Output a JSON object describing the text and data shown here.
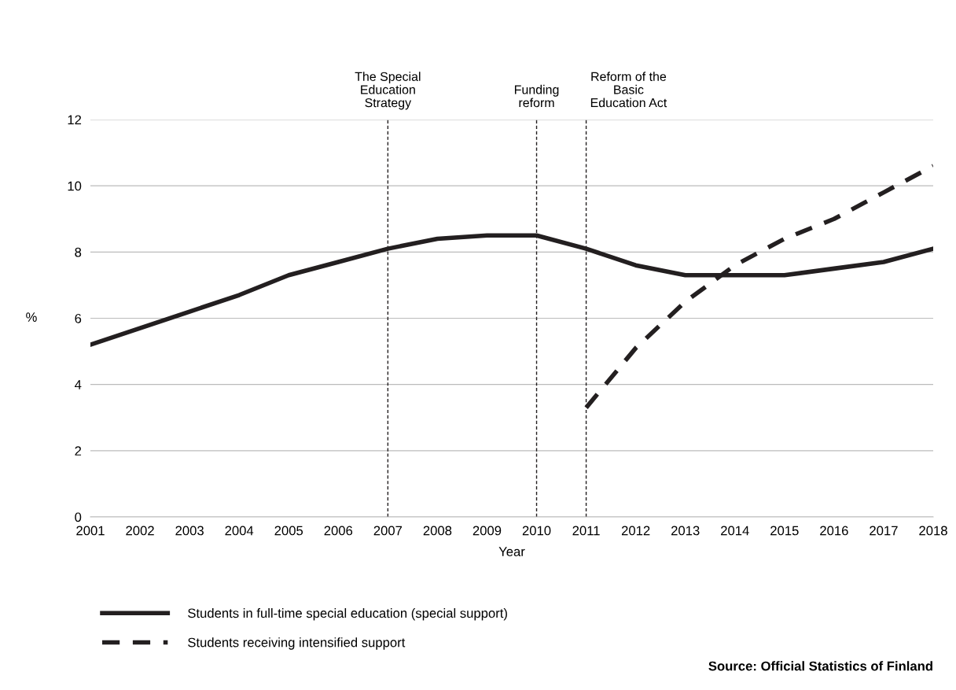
{
  "chart_data": {
    "type": "line",
    "xlabel": "Year",
    "ylabel": "%",
    "x": [
      2001,
      2002,
      2003,
      2004,
      2005,
      2006,
      2007,
      2008,
      2009,
      2010,
      2011,
      2012,
      2013,
      2014,
      2015,
      2016,
      2017,
      2018
    ],
    "series": [
      {
        "name": "Students in full-time special education (special support)",
        "color": "#231f20",
        "line_style": "solid",
        "values": [
          5.2,
          5.7,
          6.2,
          6.7,
          7.3,
          7.7,
          8.1,
          8.4,
          8.5,
          8.5,
          8.1,
          7.6,
          7.3,
          7.3,
          7.3,
          7.5,
          7.7,
          8.1
        ]
      },
      {
        "name": "Students receiving intensified support",
        "color": "#231f20",
        "line_style": "dashed",
        "values": [
          null,
          null,
          null,
          null,
          null,
          null,
          null,
          null,
          null,
          null,
          3.3,
          5.1,
          6.5,
          7.6,
          8.4,
          9.0,
          9.8,
          10.6
        ]
      }
    ],
    "xlim": [
      2001,
      2018
    ],
    "xticks": [
      2001,
      2002,
      2003,
      2004,
      2005,
      2006,
      2007,
      2008,
      2009,
      2010,
      2011,
      2012,
      2013,
      2014,
      2015,
      2016,
      2017,
      2018
    ],
    "ylim": [
      0,
      12
    ],
    "yticks": [
      0,
      2,
      4,
      6,
      8,
      10,
      12
    ],
    "grid": "y",
    "legend": "bottom",
    "marker": "none",
    "ref_lines": [
      {
        "axis": "x",
        "value": 2007,
        "label": "The Special\nEducation\nStrategy",
        "color": "#231f20",
        "line_style": "dashed"
      },
      {
        "axis": "x",
        "value": 2010,
        "label": "Funding\nreform",
        "color": "#231f20",
        "line_style": "dashed"
      },
      {
        "axis": "x",
        "value": 2011,
        "label": "Reform of the\nBasic\nEducation Act",
        "color": "#231f20",
        "line_style": "dashed"
      }
    ],
    "annotations": [
      "Source: Official Statistics of Finland"
    ]
  }
}
